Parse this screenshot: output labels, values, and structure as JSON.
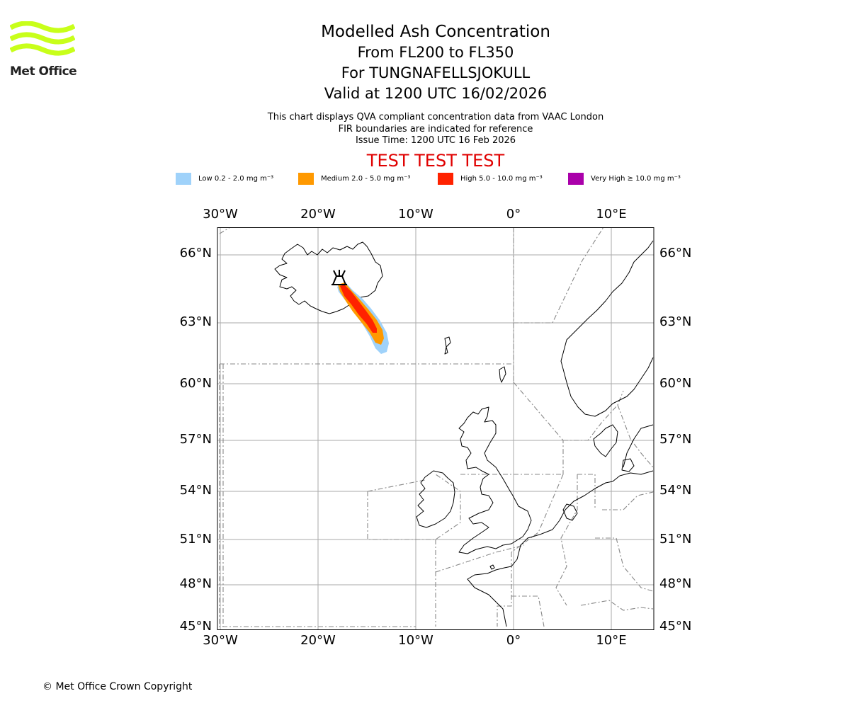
{
  "logo": {
    "text": "Met Office",
    "color": "#c8ff1a"
  },
  "title": {
    "main": "Modelled Ash Concentration",
    "levels": "From FL200 to FL350",
    "volcano": "For TUNGNAFELLSJOKULL",
    "valid": "Valid at 1200 UTC 16/02/2026"
  },
  "description": {
    "line1": "This chart displays QVA compliant concentration data from VAAC London",
    "line2": "FIR boundaries are indicated for reference",
    "line3": "Issue Time: 1200 UTC 16 Feb 2026"
  },
  "test_banner": "TEST TEST TEST",
  "legend": [
    {
      "label": "Low 0.2 - 2.0 mg m⁻³",
      "color": "#9fd2fa"
    },
    {
      "label": "Medium 2.0 - 5.0 mg m⁻³",
      "color": "#ff9900"
    },
    {
      "label": "High 5.0 - 10.0 mg m⁻³",
      "color": "#ff2200"
    },
    {
      "label": "Very High  ≥  10.0 mg m⁻³",
      "color": "#aa00aa"
    }
  ],
  "map": {
    "lon_ticks": [
      "30°W",
      "20°W",
      "10°W",
      "0°",
      "10°E"
    ],
    "lat_ticks": [
      "66°N",
      "63°N",
      "60°N",
      "57°N",
      "54°N",
      "51°N",
      "48°N",
      "45°N"
    ],
    "volcano_icon": "volcano-icon"
  },
  "copyright": "© Met Office Crown Copyright"
}
